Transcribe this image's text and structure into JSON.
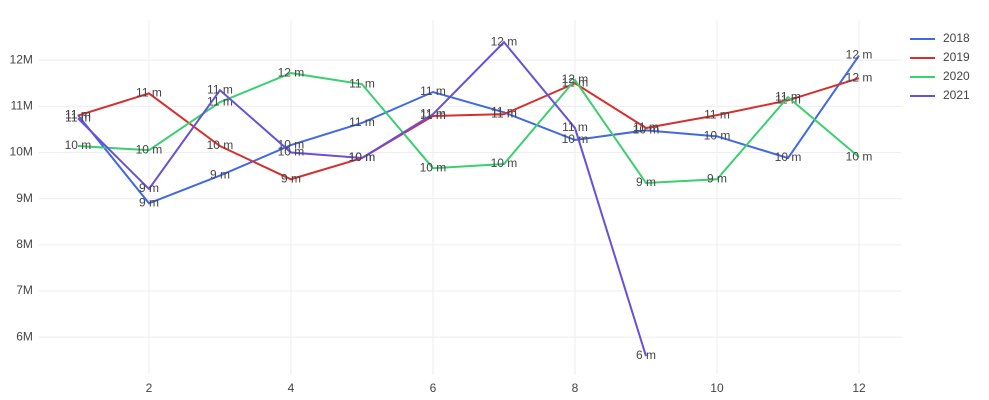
{
  "chart_data": {
    "type": "line",
    "x": [
      1,
      2,
      3,
      4,
      5,
      6,
      7,
      8,
      9,
      10,
      11,
      12
    ],
    "series": [
      {
        "name": "2018",
        "color": "#4169e1",
        "values": [
          10.81,
          8.9,
          9.5,
          10.16,
          10.64,
          11.31,
          10.87,
          10.27,
          10.48,
          10.35,
          9.88,
          12.1
        ],
        "value_labels": [
          "11 m",
          "9 m",
          "9 m",
          "10 m",
          "11 m",
          "11 m",
          "11 m",
          "10 m",
          "10 m",
          "10 m",
          "10 m",
          "12 m"
        ]
      },
      {
        "name": "2019",
        "color": "#d62f2f",
        "values": [
          10.8,
          11.28,
          10.14,
          9.42,
          9.88,
          10.79,
          10.83,
          11.5,
          10.53,
          10.81,
          11.13,
          11.61
        ],
        "value_labels": [
          "11 m",
          "11 m",
          "10 m",
          "9 m",
          "10 m",
          "11 m",
          "11 m",
          "12 m",
          "11 m",
          "11 m",
          "11 m",
          "12 m"
        ]
      },
      {
        "name": "2020",
        "color": "#3ccf6f",
        "values": [
          10.14,
          10.05,
          11.09,
          11.72,
          11.48,
          9.66,
          9.75,
          11.57,
          9.34,
          9.42,
          11.2,
          9.9
        ],
        "value_labels": [
          "10 m",
          "10 m",
          "11 m",
          "12 m",
          "11 m",
          "10 m",
          "10 m",
          "12 m",
          "9 m",
          "9 m",
          "11 m",
          "10 m"
        ]
      },
      {
        "name": "2021",
        "color": "#6a4fd8",
        "values": [
          10.74,
          9.21,
          11.35,
          10.0,
          9.88,
          10.83,
          12.39,
          10.53,
          5.59,
          null,
          null,
          null
        ],
        "value_labels": [
          "11 m",
          "9 m",
          "11 m",
          "10 m",
          "10 m",
          "11 m",
          "12 m",
          "11 m",
          "6 m",
          null,
          null,
          null
        ]
      }
    ],
    "xlim": [
      0.45,
      12.6
    ],
    "xticks": [
      2,
      4,
      6,
      8,
      10,
      12
    ],
    "ylim": [
      5.18,
      12.87
    ],
    "yticks": [
      {
        "value": 6,
        "label": "6M"
      },
      {
        "value": 7,
        "label": "7M"
      },
      {
        "value": 8,
        "label": "8M"
      },
      {
        "value": 9,
        "label": "9M"
      },
      {
        "value": 10,
        "label": "10M"
      },
      {
        "value": 11,
        "label": "11M"
      },
      {
        "value": 12,
        "label": "12M"
      }
    ],
    "grid": true,
    "legend": "top-right"
  }
}
